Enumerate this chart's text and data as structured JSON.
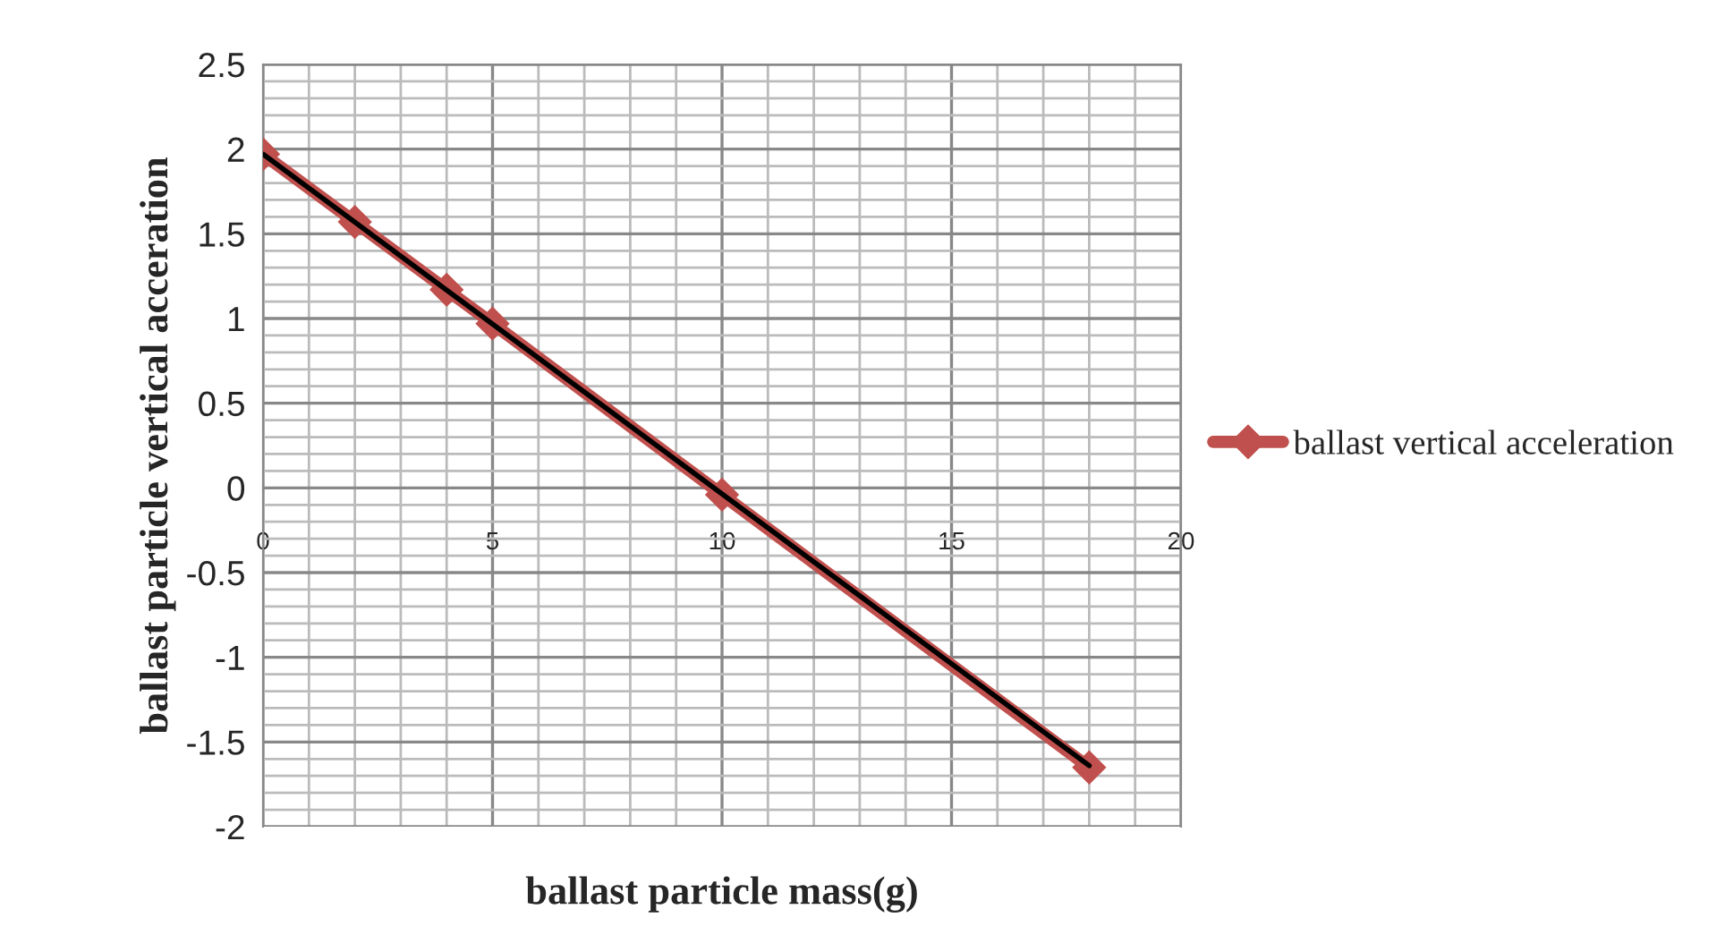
{
  "chart_data": {
    "type": "line",
    "xlabel": "ballast particle mass(g)",
    "ylabel": "ballast particle vertical acceration",
    "series": [
      {
        "name": "ballast vertical acceleration",
        "color": "#c0504d",
        "x": [
          0,
          2,
          4,
          5,
          10,
          18
        ],
        "values": [
          1.97,
          1.57,
          1.17,
          0.97,
          -0.04,
          -1.65
        ],
        "marker": "diamond"
      },
      {
        "type": "line",
        "color": "#000000",
        "x": [
          0,
          18
        ],
        "values": [
          1.97,
          -1.64
        ],
        "marker": "none"
      }
    ],
    "xlim": [
      0,
      20
    ],
    "xticks": [
      0,
      5,
      10,
      15,
      20
    ],
    "ylim": [
      -2,
      2.5
    ],
    "yticks": [
      -2,
      -1.5,
      -1,
      -0.5,
      0,
      0.5,
      1,
      1.5,
      2,
      2.5
    ],
    "grid": true,
    "legend": "right",
    "line_style": "solid"
  }
}
